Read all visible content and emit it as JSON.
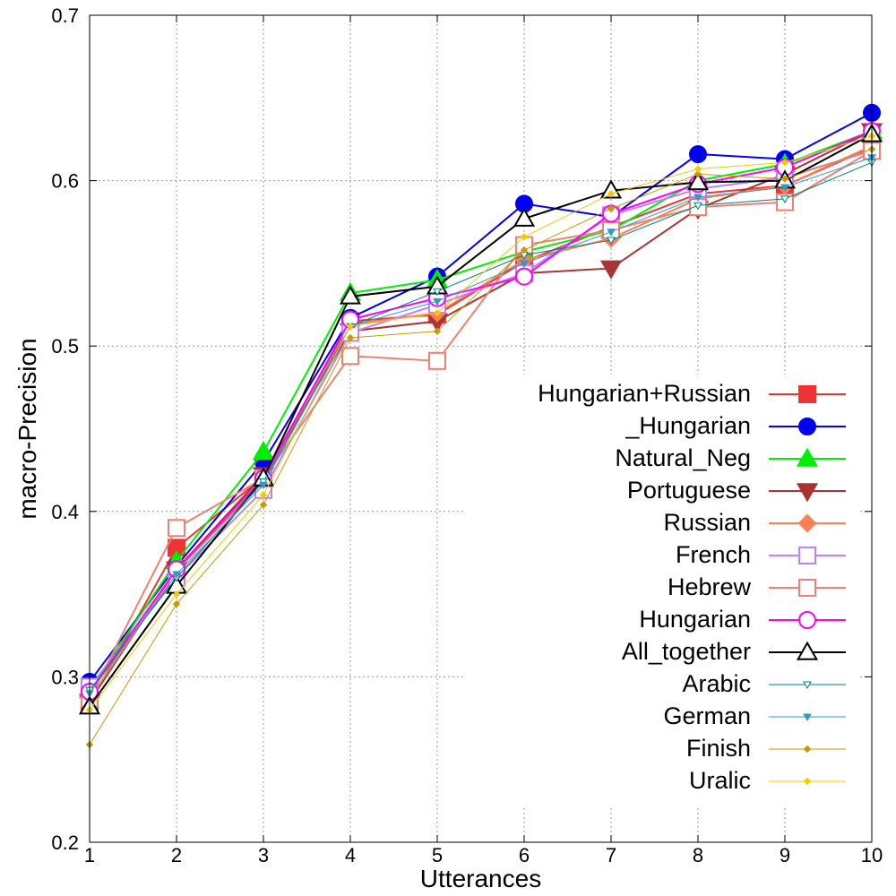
{
  "chart_data": {
    "type": "line",
    "title": "",
    "xlabel": "Utterances",
    "ylabel": "macro-Precision",
    "x": [
      1,
      2,
      3,
      4,
      5,
      6,
      7,
      8,
      9,
      10
    ],
    "xlim": [
      1,
      10
    ],
    "ylim": [
      0.2,
      0.7
    ],
    "xticks": [
      "1",
      "2",
      "3",
      "4",
      "5",
      "6",
      "7",
      "8",
      "9",
      "10"
    ],
    "yticks": [
      "0.2",
      "0.3",
      "0.4",
      "0.5",
      "0.6",
      "0.7"
    ],
    "grid": true,
    "legend_position": "right",
    "series": [
      {
        "name": "Hungarian+Russian",
        "color": "#ee3333",
        "marker": "filled-square",
        "values": [
          0.284,
          0.378,
          0.421,
          0.515,
          0.519,
          0.551,
          0.572,
          0.592,
          0.597,
          0.62
        ]
      },
      {
        "name": "_Hungarian",
        "color": "#0000ee",
        "marker": "filled-circle",
        "values": [
          0.297,
          0.367,
          0.43,
          0.517,
          0.542,
          0.586,
          0.578,
          0.616,
          0.613,
          0.641
        ]
      },
      {
        "name": "Natural_Neg",
        "color": "#00ee00",
        "marker": "filled-triangle-up",
        "values": [
          0.292,
          0.37,
          0.436,
          0.532,
          0.54,
          0.557,
          0.57,
          0.6,
          0.61,
          0.63
        ]
      },
      {
        "name": "Portuguese",
        "color": "#aa3333",
        "marker": "filled-triangle-down",
        "values": [
          0.285,
          0.365,
          0.422,
          0.509,
          0.515,
          0.544,
          0.547,
          0.583,
          0.604,
          0.63
        ]
      },
      {
        "name": "Russian",
        "color": "#ff7f50",
        "marker": "filled-diamond",
        "values": [
          0.287,
          0.364,
          0.418,
          0.513,
          0.52,
          0.552,
          0.565,
          0.589,
          0.597,
          0.621
        ]
      },
      {
        "name": "French",
        "color": "#c080ff",
        "marker": "open-square",
        "values": [
          0.294,
          0.36,
          0.413,
          0.508,
          0.525,
          0.544,
          0.579,
          0.595,
          0.602,
          0.618
        ]
      },
      {
        "name": "Hebrew",
        "color": "#f08070",
        "marker": "open-square",
        "values": [
          0.287,
          0.39,
          0.42,
          0.494,
          0.491,
          0.561,
          0.57,
          0.584,
          0.587,
          0.618
        ]
      },
      {
        "name": "Hungarian",
        "color": "#ff00ff",
        "marker": "open-circle",
        "values": [
          0.291,
          0.365,
          0.42,
          0.516,
          0.529,
          0.542,
          0.58,
          0.598,
          0.608,
          0.63
        ]
      },
      {
        "name": "All_together",
        "color": "#000000",
        "marker": "open-triangle-up",
        "values": [
          0.282,
          0.355,
          0.42,
          0.53,
          0.536,
          0.577,
          0.594,
          0.599,
          0.6,
          0.628
        ]
      },
      {
        "name": "Arabic",
        "color": "#008080",
        "marker": "small-open-triangle-down",
        "values": [
          0.292,
          0.36,
          0.418,
          0.512,
          0.533,
          0.555,
          0.564,
          0.585,
          0.589,
          0.611
        ]
      },
      {
        "name": "German",
        "color": "#3399cc",
        "marker": "small-filled-triangle-down",
        "values": [
          0.29,
          0.362,
          0.416,
          0.512,
          0.527,
          0.55,
          0.569,
          0.59,
          0.596,
          0.614
        ]
      },
      {
        "name": "Finish",
        "color": "#cc9900",
        "marker": "small-diamond",
        "values": [
          0.259,
          0.344,
          0.404,
          0.505,
          0.509,
          0.558,
          0.583,
          0.604,
          0.601,
          0.619
        ]
      },
      {
        "name": "Uralic",
        "color": "#eecc00",
        "marker": "small-diamond",
        "values": [
          0.28,
          0.35,
          0.41,
          0.512,
          0.52,
          0.566,
          0.592,
          0.607,
          0.611,
          0.627
        ]
      }
    ]
  }
}
